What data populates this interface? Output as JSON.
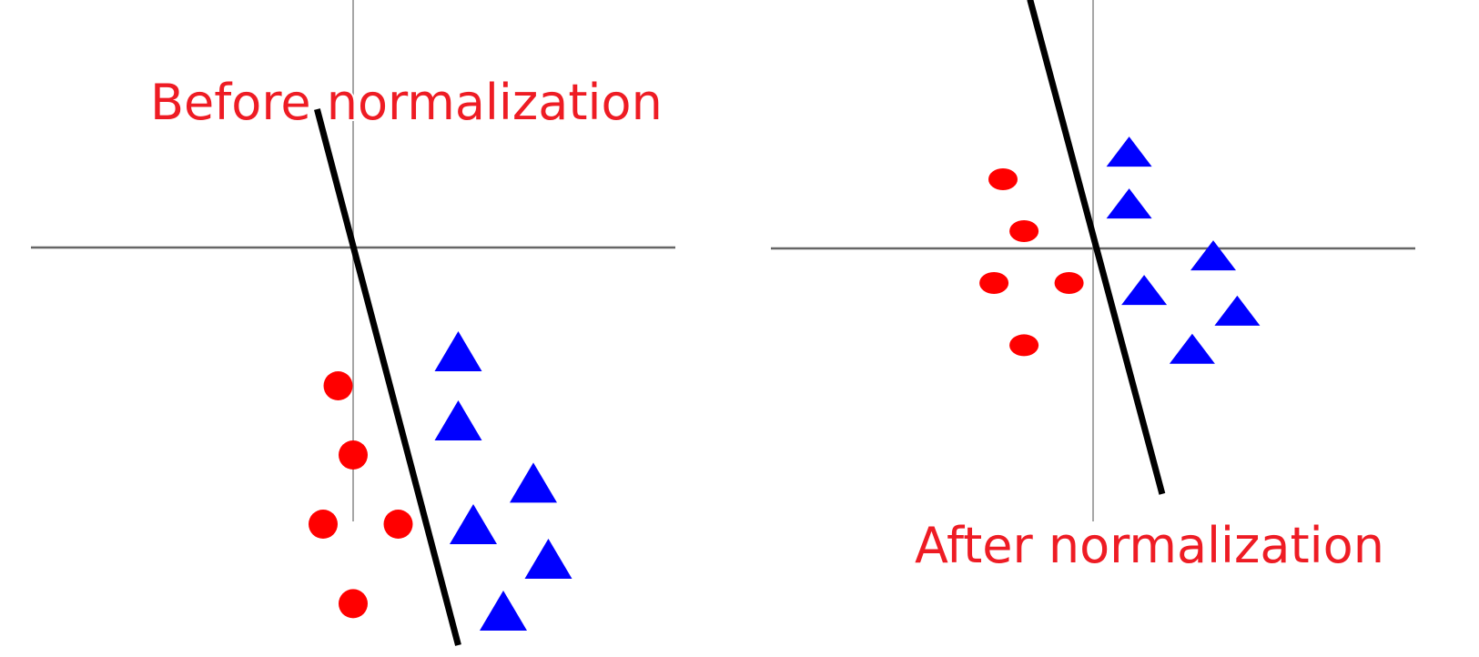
{
  "panels": [
    {
      "id": "before",
      "title": "Before normalization",
      "circles": [
        [
          -0.5,
          -4
        ],
        [
          0,
          -6
        ],
        [
          -1,
          -8
        ],
        [
          1.5,
          -8
        ],
        [
          0,
          -10.3
        ]
      ],
      "triangles": [
        [
          3.5,
          -3
        ],
        [
          3.5,
          -5
        ],
        [
          6,
          -6.8
        ],
        [
          4,
          -8
        ],
        [
          6.5,
          -9
        ],
        [
          5,
          -10.5
        ]
      ],
      "boundary": [
        [
          -1.2,
          4
        ],
        [
          3.5,
          -11.5
        ]
      ]
    },
    {
      "id": "after",
      "title": "After normalization",
      "circles": [
        [
          -3,
          2
        ],
        [
          -2.3,
          0.5
        ],
        [
          -3.3,
          -1
        ],
        [
          -0.8,
          -1
        ],
        [
          -2.3,
          -2.8
        ]
      ],
      "triangles": [
        [
          1.2,
          2.8
        ],
        [
          1.2,
          1.3
        ],
        [
          4,
          -0.2
        ],
        [
          1.7,
          -1.2
        ],
        [
          4.8,
          -1.8
        ],
        [
          3.3,
          -2.9
        ]
      ],
      "boundary": [
        [
          -2.1,
          7.2
        ],
        [
          2.3,
          -7.1
        ]
      ]
    }
  ],
  "colors": {
    "class_a": "#ff0000",
    "class_b": "#0000ff",
    "boundary": "#000000",
    "axes_major": "#666666",
    "axes_minor": "#888888",
    "title": "#ee1c24"
  }
}
